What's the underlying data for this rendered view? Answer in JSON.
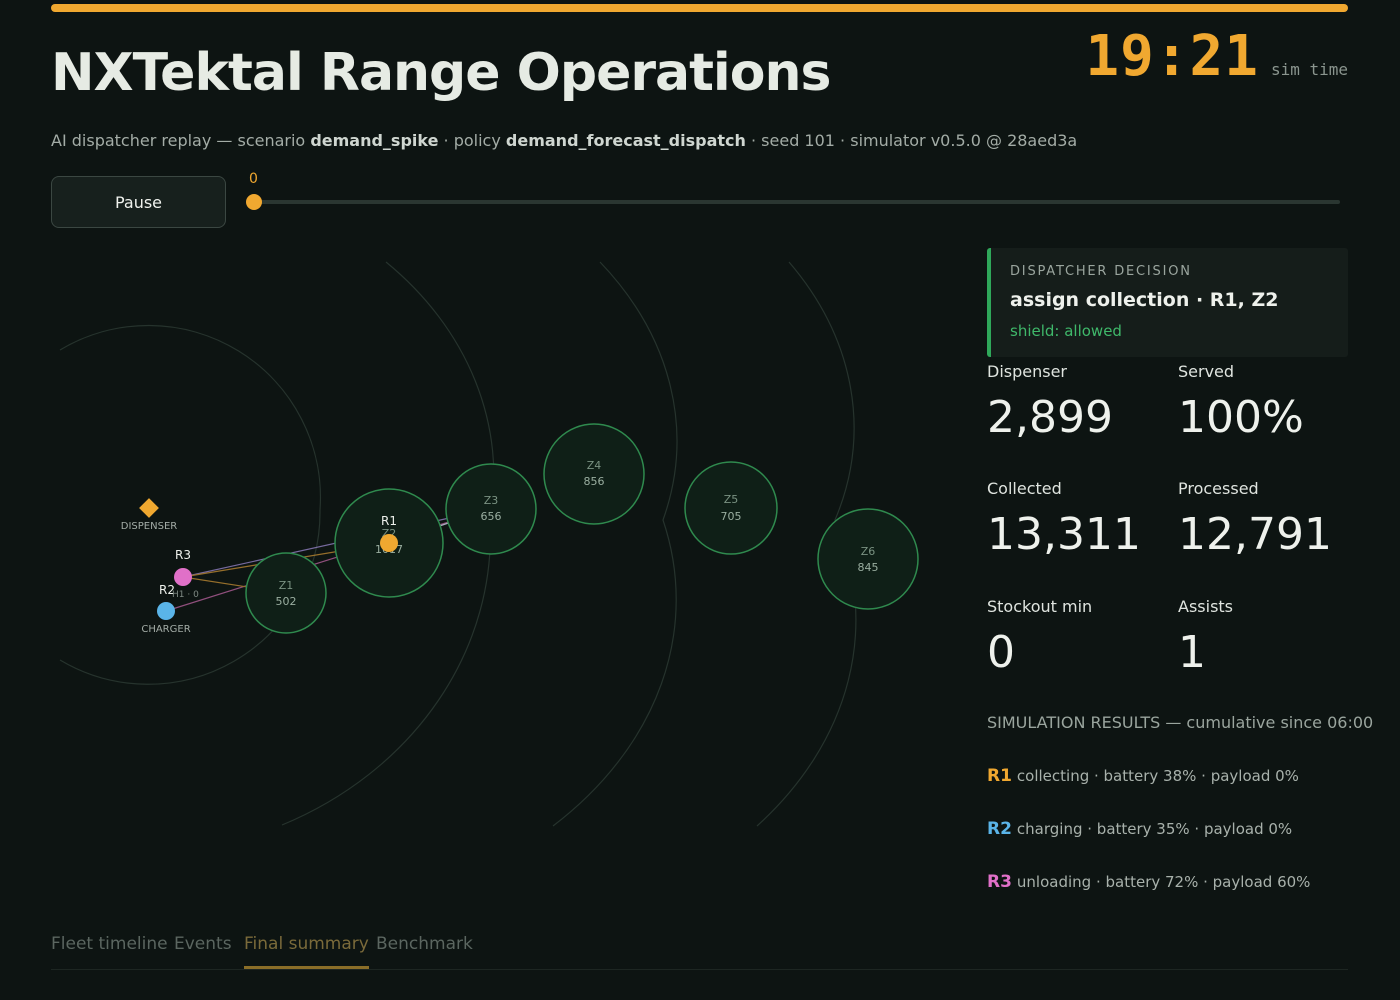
{
  "header": {
    "title": "NXTektal Range Operations",
    "clock": "19:21",
    "clock_label": "sim time",
    "subtitle": {
      "prefix": "AI dispatcher replay — scenario ",
      "scenario": "demand_spike",
      "policy_prefix": " · policy ",
      "policy": "demand_forecast_dispatch",
      "suffix": " · seed 101 · simulator v0.5.0 @ 28aed3a"
    }
  },
  "controls": {
    "pause_label": "Pause",
    "scrubber_value": "0"
  },
  "map": {
    "dispenser_label": "DISPENSER",
    "charger_label": "CHARGER",
    "zones": [
      {
        "id": "Z1",
        "value": "502"
      },
      {
        "id": "Z2",
        "value": "1017"
      },
      {
        "id": "Z3",
        "value": "656"
      },
      {
        "id": "Z4",
        "value": "856"
      },
      {
        "id": "Z5",
        "value": "705"
      },
      {
        "id": "Z6",
        "value": "845"
      }
    ],
    "robots": [
      {
        "id": "R1",
        "color": "#f0a830",
        "sublabel": "Z2"
      },
      {
        "id": "R2",
        "color": "#5ab4e8",
        "sublabel": "H1 · 0"
      },
      {
        "id": "R3",
        "color": "#e070c8",
        "sublabel": ""
      }
    ]
  },
  "decision": {
    "kicker": "DISPATCHER DECISION",
    "action": "assign collection · R1, Z2",
    "shield": "shield: allowed"
  },
  "stats": {
    "dispenser": {
      "label": "Dispenser",
      "value": "2,899"
    },
    "served": {
      "label": "Served",
      "value": "100%"
    },
    "collected": {
      "label": "Collected",
      "value": "13,311"
    },
    "processed": {
      "label": "Processed",
      "value": "12,791"
    },
    "stockout": {
      "label": "Stockout min",
      "value": "0"
    },
    "assists": {
      "label": "Assists",
      "value": "1"
    }
  },
  "results": {
    "heading": "SIMULATION RESULTS — cumulative since 06:00",
    "robots": [
      {
        "id": "R1",
        "color": "#f0a830",
        "text": "collecting · battery 38% · payload 0%"
      },
      {
        "id": "R2",
        "color": "#5ab4e8",
        "text": "charging · battery 35% · payload 0%"
      },
      {
        "id": "R3",
        "color": "#e070c8",
        "text": "unloading · battery 72% · payload 60%"
      }
    ]
  },
  "tabs": [
    {
      "label": "Fleet timeline",
      "active": false
    },
    {
      "label": "Events",
      "active": false
    },
    {
      "label": "Final summary",
      "active": true
    },
    {
      "label": "Benchmark",
      "active": false
    }
  ],
  "colors": {
    "accent": "#f0a830",
    "shield_ok": "#3fb86a",
    "zone_ring": "#2f8a4e"
  }
}
